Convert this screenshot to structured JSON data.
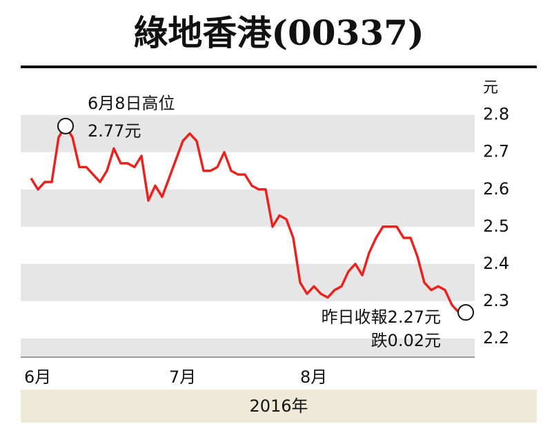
{
  "chart_data": {
    "type": "line",
    "title": "綠地香港(00337)",
    "y_unit": "元",
    "x_label": "2016年",
    "categories": [
      "6月",
      null,
      null,
      null,
      null,
      null,
      null,
      null,
      null,
      null,
      null,
      null,
      null,
      null,
      null,
      null,
      null,
      null,
      null,
      null,
      null,
      "7月",
      null,
      null,
      null,
      null,
      null,
      null,
      null,
      null,
      null,
      null,
      null,
      null,
      null,
      null,
      null,
      null,
      null,
      null,
      "8月",
      null,
      null,
      null,
      null,
      null,
      null,
      null,
      null,
      null,
      null,
      null,
      null,
      null,
      null,
      null,
      null,
      null,
      null,
      null,
      null,
      null,
      null,
      null
    ],
    "series": [
      {
        "color": "#e8231f",
        "values": [
          2.63,
          2.6,
          2.62,
          2.62,
          2.74,
          2.77,
          2.74,
          2.66,
          2.66,
          2.64,
          2.62,
          2.65,
          2.71,
          2.67,
          2.67,
          2.66,
          2.69,
          2.57,
          2.61,
          2.58,
          2.63,
          2.68,
          2.73,
          2.75,
          2.73,
          2.65,
          2.65,
          2.66,
          2.7,
          2.65,
          2.64,
          2.64,
          2.61,
          2.6,
          2.6,
          2.5,
          2.53,
          2.52,
          2.47,
          2.35,
          2.32,
          2.34,
          2.32,
          2.31,
          2.33,
          2.34,
          2.38,
          2.4,
          2.37,
          2.43,
          2.47,
          2.5,
          2.5,
          2.5,
          2.47,
          2.47,
          2.42,
          2.35,
          2.33,
          2.34,
          2.33,
          2.29,
          2.27,
          2.27
        ]
      }
    ],
    "ylim": [
      2.15,
      2.89
    ],
    "yticks": [
      2.2,
      2.3,
      2.4,
      2.5,
      2.6,
      2.7,
      2.8
    ],
    "grid": "bands",
    "annotations": [
      "6月8日高位",
      "2.77元",
      "昨日收報2.27元",
      "跌0.02元"
    ]
  }
}
